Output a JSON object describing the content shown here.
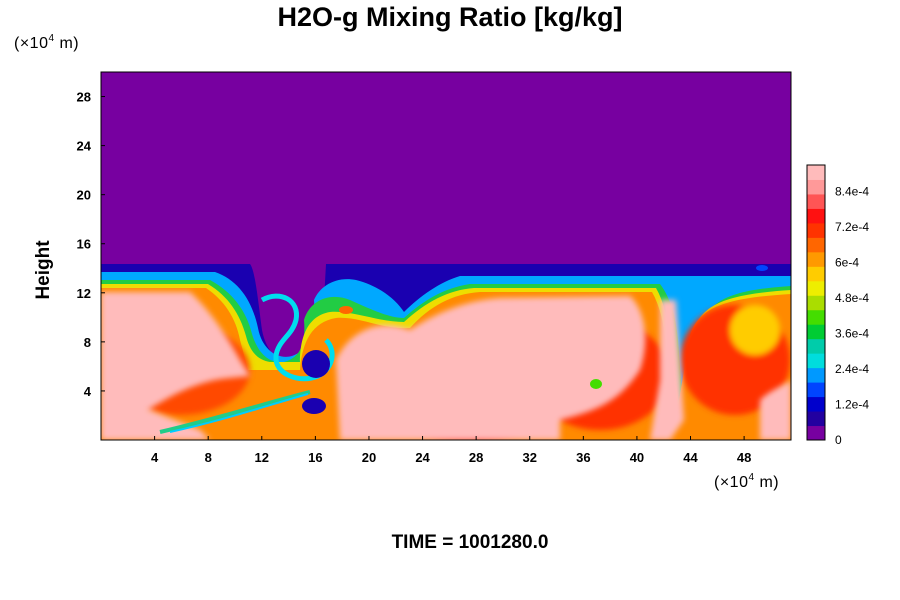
{
  "chart_data": {
    "type": "heatmap",
    "title": "H2O-g Mixing Ratio [kg/kg]",
    "x_unit": {
      "prefix": "(×10",
      "exp": "4",
      "suffix": " m)"
    },
    "y_unit": {
      "prefix": "(×10",
      "exp": "4",
      "suffix": " m)"
    },
    "ylabel": "Height",
    "time_label": "TIME = 1001280.0",
    "xlim": [
      0,
      51.5
    ],
    "ylim": [
      0,
      30
    ],
    "x_ticks": [
      4,
      8,
      12,
      16,
      20,
      24,
      28,
      32,
      36,
      40,
      44,
      48
    ],
    "x_tick_labels": [
      "4",
      "8",
      "12",
      "16",
      "20",
      "24",
      "28",
      "32",
      "36",
      "40",
      "44",
      "48"
    ],
    "y_ticks": [
      4,
      8,
      12,
      16,
      20,
      24,
      28
    ],
    "y_tick_labels": [
      "4",
      "8",
      "12",
      "16",
      "20",
      "24",
      "28"
    ],
    "colorbar": {
      "range": [
        0,
        0.00093
      ],
      "tick_values": [
        0,
        0.00012,
        0.00024,
        0.00036,
        0.00048,
        0.0006,
        0.00072,
        0.00084
      ],
      "tick_labels": [
        "0",
        "1.2e-4",
        "2.4e-4",
        "3.6e-4",
        "4.8e-4",
        "6e-4",
        "7.2e-4",
        "8.4e-4"
      ],
      "colors": [
        "#7700a0",
        "#2200a0",
        "#0000cc",
        "#0044ff",
        "#0099ff",
        "#00dddd",
        "#00ccaa",
        "#00cc33",
        "#44dd00",
        "#aadd00",
        "#eeee00",
        "#ffcc00",
        "#ff9900",
        "#ff6600",
        "#ff3300",
        "#ff1111",
        "#ff5555",
        "#ff9999",
        "#ffbbbb"
      ]
    },
    "field_description_values": {
      "dry_layer_top": 30,
      "moist_layer_top_approx": 12.5,
      "dry_value": 0,
      "moist_max": 0.00093
    }
  }
}
